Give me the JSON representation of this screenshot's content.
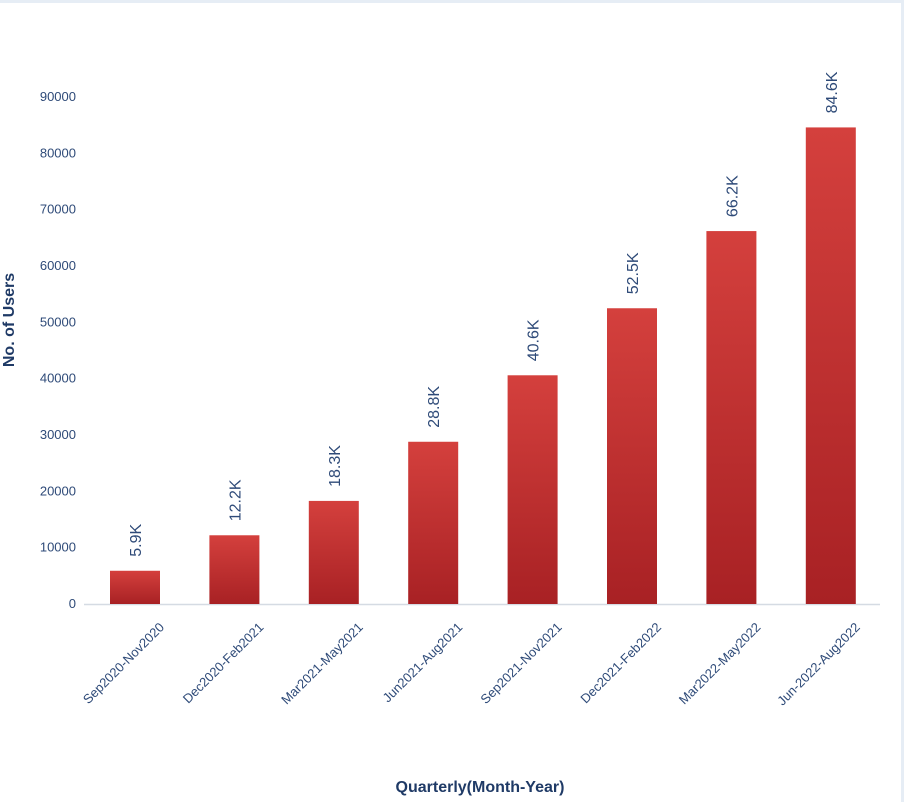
{
  "chart_data": {
    "type": "bar",
    "title": "",
    "xlabel": "Quarterly(Month-Year)",
    "ylabel": "No. of Users",
    "categories": [
      "Sep2020-Nov2020",
      "Dec2020-Feb2021",
      "Mar2021-May2021",
      "Jun2021-Aug2021",
      "Sep2021-Nov2021",
      "Dec2021-Feb2022",
      "Mar2022-May2022",
      "Jun-2022-Aug2022"
    ],
    "values": [
      5900,
      12200,
      18300,
      28800,
      40600,
      52500,
      66200,
      84600
    ],
    "data_labels": [
      "5.9K",
      "12.2K",
      "18.3K",
      "28.8K",
      "40.6K",
      "52.5K",
      "66.2K",
      "84.6K"
    ],
    "ylim": [
      0,
      90000
    ],
    "yticks": [
      0,
      10000,
      20000,
      30000,
      40000,
      50000,
      60000,
      70000,
      80000,
      90000
    ],
    "grid": false,
    "legend": "none",
    "colors": {
      "bar_top": "#d4403d",
      "bar_bottom": "#a82124",
      "text": "#2e4a78",
      "axis": "#d5dbe3"
    }
  }
}
